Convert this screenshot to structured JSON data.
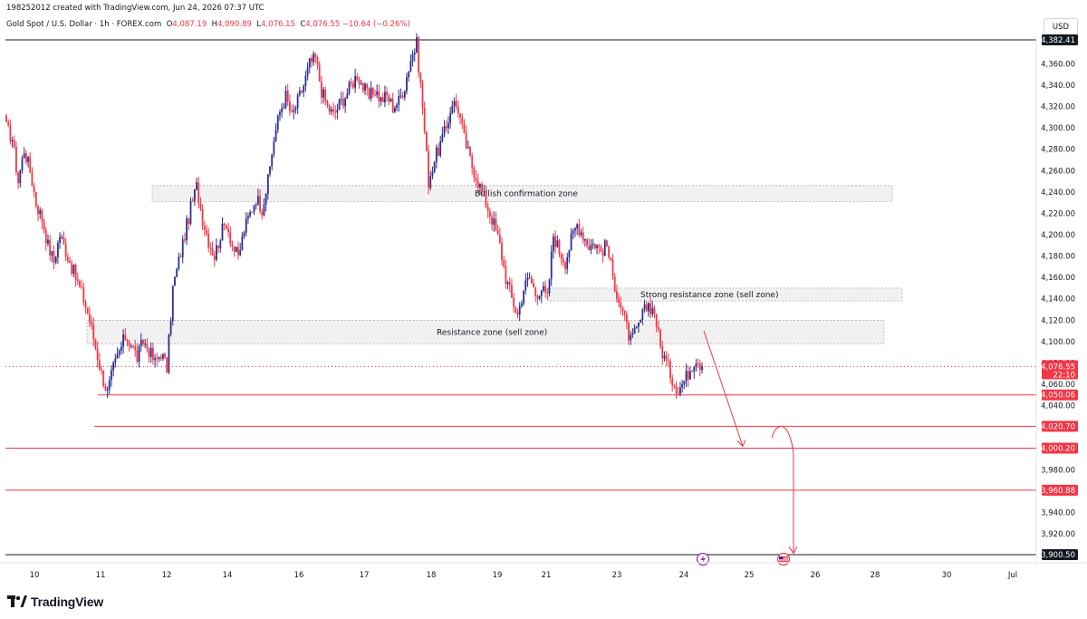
{
  "header": {
    "credit": "198252012 created with TradingView.com, Jun 24, 2026 07:37 UTC",
    "symbol": "Gold Spot / U.S. Dollar · 1h · FOREX.com",
    "ohlc": [
      {
        "label": "O",
        "value": "4,087.19"
      },
      {
        "label": "H",
        "value": "4,090.89"
      },
      {
        "label": "L",
        "value": "4,076.15"
      },
      {
        "label": "C",
        "value": "4,076.55"
      }
    ],
    "change": "−10.64 (−0.26%)",
    "currency": "USD"
  },
  "brand": {
    "name": "TradingView",
    "icon": "tradingview-logo-icon"
  },
  "colors": {
    "up": "#2a2e8e",
    "down": "#f23645",
    "level": "#f23645",
    "zone_fill": "#eeeeee",
    "zone_border": "#9b9b9b",
    "top_line": "#131722"
  },
  "chart_data": {
    "type": "candlestick",
    "timeframe": "1h",
    "ylim": [
      3900.5,
      4382.41
    ],
    "y_ticks": [
      "4,360.00",
      "4,340.00",
      "4,320.00",
      "4,300.00",
      "4,280.00",
      "4,260.00",
      "4,240.00",
      "4,220.00",
      "4,200.00",
      "4,180.00",
      "4,160.00",
      "4,140.00",
      "4,120.00",
      "4,100.00",
      "4,080.00",
      "4,060.00",
      "4,040.00",
      "3,980.00",
      "3,960.00",
      "3,940.00",
      "3,920.00"
    ],
    "y_tick_values": [
      4360,
      4340,
      4320,
      4300,
      4280,
      4260,
      4240,
      4220,
      4200,
      4180,
      4160,
      4140,
      4120,
      4100,
      4080,
      4060,
      4040,
      3980,
      3960,
      3940,
      3920
    ],
    "x_ticks": [
      "10",
      "11",
      "12",
      "14",
      "16",
      "17",
      "18",
      "19",
      "21",
      "23",
      "24",
      "25",
      "26",
      "28",
      "30",
      "Jul"
    ],
    "price_path": [
      4300,
      4290,
      4250,
      4280,
      4260,
      4230,
      4215,
      4190,
      4175,
      4200,
      4185,
      4170,
      4155,
      4140,
      4120,
      4095,
      4070,
      4052,
      4075,
      4090,
      4105,
      4098,
      4085,
      4100,
      4092,
      4080,
      4090,
      4075,
      4150,
      4175,
      4200,
      4225,
      4245,
      4215,
      4195,
      4180,
      4200,
      4212,
      4190,
      4178,
      4205,
      4220,
      4235,
      4225,
      4250,
      4290,
      4315,
      4330,
      4310,
      4325,
      4340,
      4360,
      4365,
      4335,
      4320,
      4312,
      4322,
      4330,
      4340,
      4350,
      4338,
      4328,
      4336,
      4326,
      4330,
      4320,
      4325,
      4340,
      4365,
      4378,
      4320,
      4250,
      4270,
      4285,
      4300,
      4325,
      4318,
      4290,
      4270,
      4255,
      4240,
      4225,
      4210,
      4190,
      4160,
      4140,
      4125,
      4150,
      4160,
      4145,
      4150,
      4140,
      4200,
      4185,
      4175,
      4195,
      4210,
      4200,
      4190,
      4192,
      4185,
      4190,
      4160,
      4140,
      4120,
      4100,
      4110,
      4125,
      4135,
      4128,
      4095,
      4080,
      4065,
      4055,
      4063,
      4075,
      4085,
      4077
    ],
    "levels": [
      {
        "price": 4382.41,
        "label": "4,382.41",
        "style": "black"
      },
      {
        "price": 4050.06,
        "label": "4,050.06",
        "style": "red"
      },
      {
        "price": 4020.7,
        "label": "4,020.70",
        "style": "red"
      },
      {
        "price": 4000.2,
        "label": "4,000.20",
        "style": "red"
      },
      {
        "price": 3960.88,
        "label": "3,960.88",
        "style": "red"
      },
      {
        "price": 3900.5,
        "label": "3,900.50",
        "style": "black"
      }
    ],
    "last_price": {
      "label": "4,076.55",
      "countdown": "22:10",
      "price": 4076.55
    },
    "zones": [
      {
        "label": "Bullish confirmation zone",
        "top": 4246,
        "bottom": 4231
      },
      {
        "label": "Strong resistance zone (sell zone)",
        "top": 4150,
        "bottom": 4138
      },
      {
        "label": "Resistance zone (sell zone)",
        "top": 4120,
        "bottom": 4098
      }
    ],
    "projection": {
      "path_a": [
        4110,
        4002
      ],
      "path_b": [
        4010,
        4020,
        3901
      ]
    },
    "events": [
      {
        "icon": "lightning-icon",
        "color": "#9c27b0"
      },
      {
        "icon": "us-flag-icon",
        "color": "#f23645"
      }
    ]
  }
}
